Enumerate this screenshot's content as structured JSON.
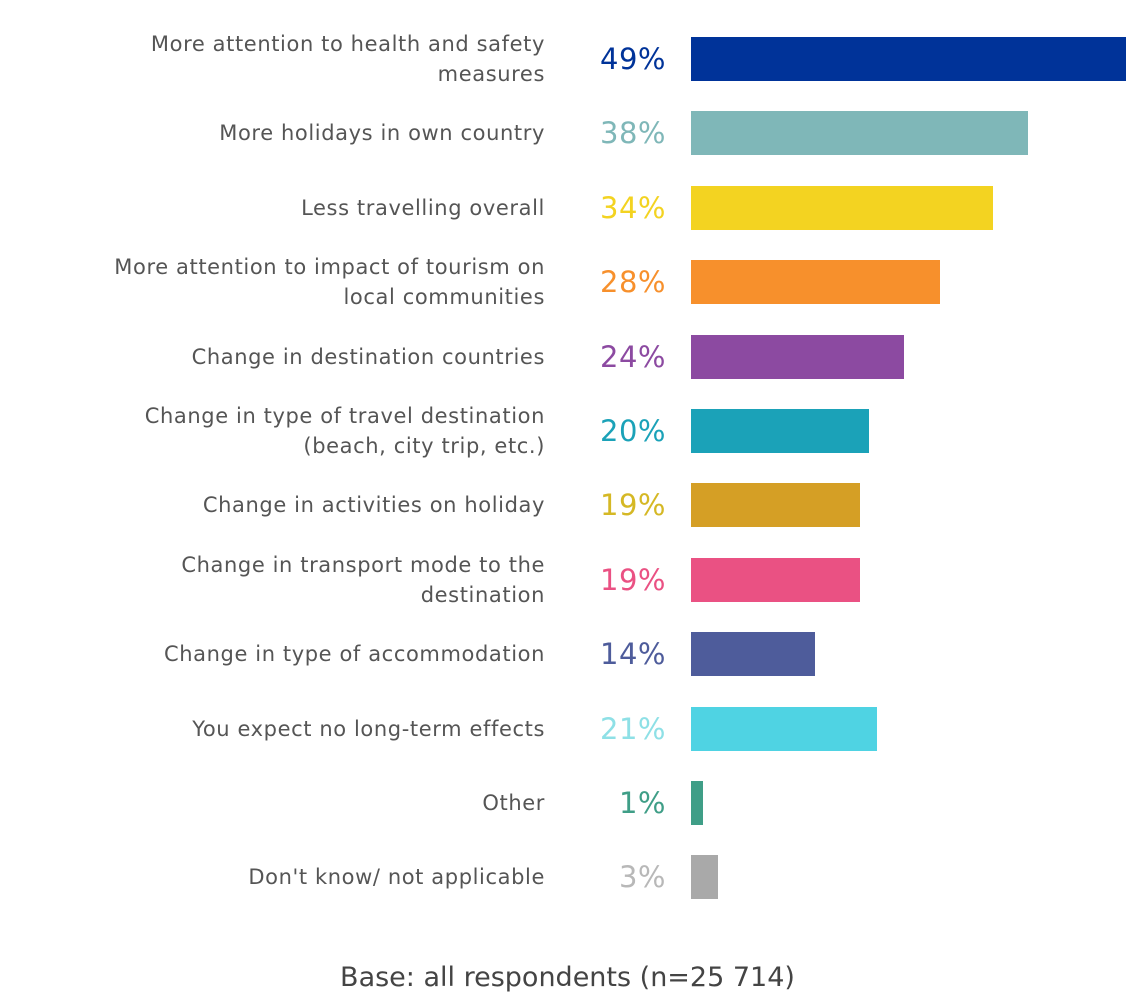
{
  "chart_data": {
    "type": "bar",
    "orientation": "horizontal",
    "categories": [
      "More attention to health and safety measures",
      "More holidays in own country",
      "Less travelling overall",
      "More attention to impact of tourism on local communities",
      "Change in destination countries",
      "Change in type of travel destination (beach, city trip, etc.)",
      "Change in activities on holiday",
      "Change in transport mode to the destination",
      "Change in type of accommodation",
      "You expect no long-term effects",
      "Other",
      "Don't know/ not applicable"
    ],
    "label_lines": [
      [
        "More attention to health and safety",
        "measures"
      ],
      [
        "More holidays in own country"
      ],
      [
        "Less travelling overall"
      ],
      [
        "More attention to impact of tourism on",
        "local communities"
      ],
      [
        "Change in destination countries"
      ],
      [
        "Change in type of travel destination",
        "(beach, city trip, etc.)"
      ],
      [
        "Change in activities on holiday"
      ],
      [
        "Change in transport mode to the",
        "destination"
      ],
      [
        "Change in type of accommodation"
      ],
      [
        "You expect no long-term effects"
      ],
      [
        "Other"
      ],
      [
        "Don't know/ not applicable"
      ]
    ],
    "values": [
      49,
      38,
      34,
      28,
      24,
      20,
      19,
      19,
      14,
      21,
      1,
      3
    ],
    "value_labels": [
      "49%",
      "38%",
      "34%",
      "28%",
      "24%",
      "20%",
      "19%",
      "19%",
      "14%",
      "21%",
      "1%",
      "3%"
    ],
    "colors": [
      "#003399",
      "#7fb7b8",
      "#f3d321",
      "#f7902c",
      "#8c4aa1",
      "#1ba2b8",
      "#d59f25",
      "#ea5183",
      "#4e5c9b",
      "#4fd3e3",
      "#3f9e87",
      "#a9a9a9"
    ],
    "value_label_colors": [
      "#003399",
      "#7fb7b8",
      "#f3d321",
      "#f7902c",
      "#8c4aa1",
      "#1ba2b8",
      "#d5b825",
      "#ea5183",
      "#4e5c9b",
      "#8ee0e6",
      "#3f9e87",
      "#b8b8b8"
    ],
    "xlim": [
      0,
      49
    ],
    "grid": false,
    "legend": "none"
  },
  "footnote": "Base: all respondents (n=25 714)"
}
